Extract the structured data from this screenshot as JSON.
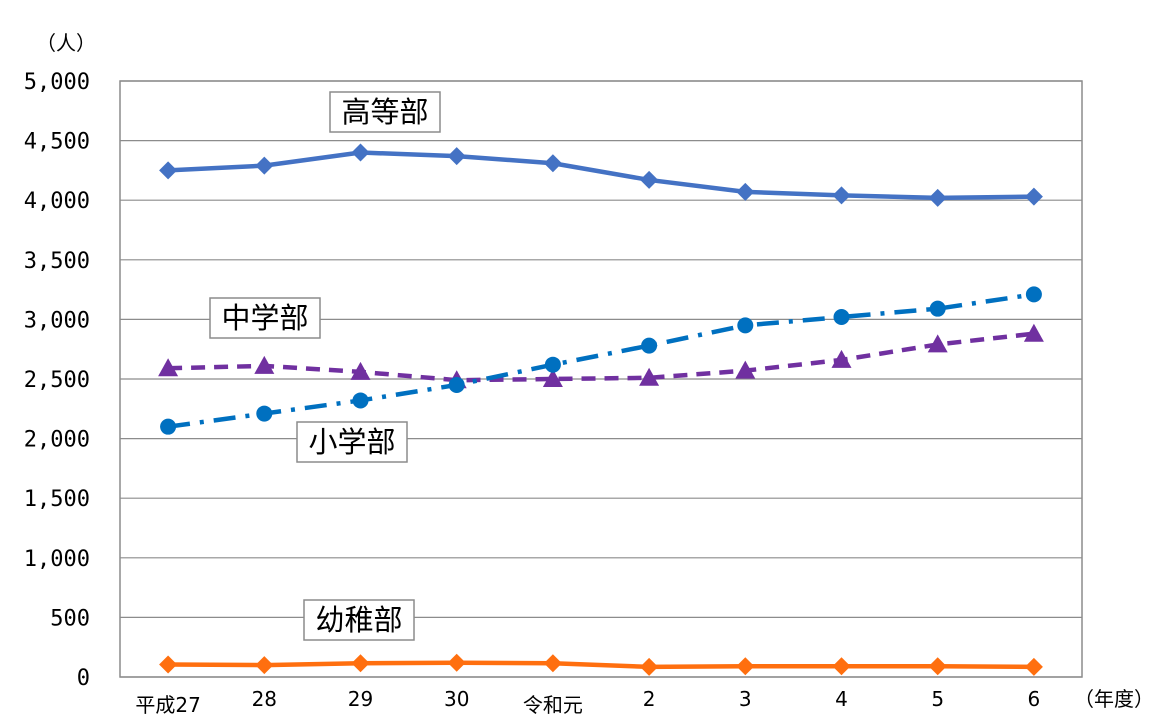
{
  "chart_data": {
    "type": "line",
    "y_unit": "（人）",
    "x_unit": "（年度）",
    "categories": [
      "平成27",
      "28",
      "29",
      "30",
      "令和元",
      "2",
      "3",
      "4",
      "5",
      "6"
    ],
    "ylim": [
      0,
      5000
    ],
    "yticks": [
      "0",
      "500",
      "1,000",
      "1,500",
      "2,000",
      "2,500",
      "3,000",
      "3,500",
      "4,000",
      "4,500",
      "5,000"
    ],
    "grid": true,
    "legend": "none",
    "series": [
      {
        "name": "高等部",
        "color": "#4472c4",
        "style": "solid",
        "marker": "diamond",
        "values": [
          4250,
          4290,
          4400,
          4370,
          4310,
          4170,
          4070,
          4040,
          4020,
          4030
        ]
      },
      {
        "name": "中学部",
        "color": "#7030a0",
        "style": "dashed",
        "marker": "triangle",
        "values": [
          2590,
          2610,
          2560,
          2490,
          2500,
          2510,
          2570,
          2660,
          2790,
          2880
        ]
      },
      {
        "name": "小学部",
        "color": "#0070c0",
        "style": "dashdot",
        "marker": "circle",
        "values": [
          2100,
          2210,
          2320,
          2450,
          2620,
          2780,
          2950,
          3020,
          3090,
          3210
        ]
      },
      {
        "name": "幼稚部",
        "color": "#ff6f0f",
        "style": "solid",
        "marker": "diamond",
        "values": [
          105,
          100,
          115,
          120,
          115,
          85,
          90,
          90,
          90,
          85
        ]
      }
    ]
  }
}
